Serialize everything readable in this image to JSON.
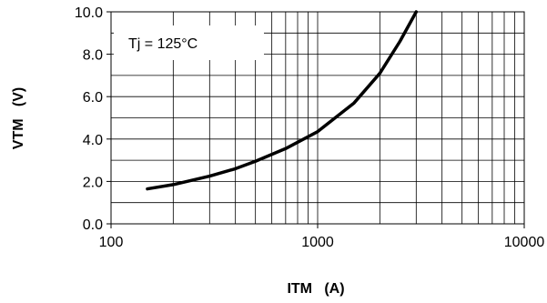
{
  "chart_data": {
    "type": "line",
    "title": "",
    "annotation": "Tj = 125°C",
    "xlabel": "ITM   (A)",
    "ylabel": "VTM   (V)",
    "x_scale": "log",
    "xlim": [
      100,
      10000
    ],
    "ylim": [
      0,
      10
    ],
    "x_ticks": [
      "100",
      "1000",
      "10000"
    ],
    "y_ticks": [
      "0.0",
      "2.0",
      "4.0",
      "6.0",
      "8.0",
      "10.0"
    ],
    "grid": true,
    "series": [
      {
        "x": [
          150,
          200,
          300,
          400,
          500,
          700,
          1000,
          1500,
          2000,
          2500,
          3000
        ],
        "y": [
          1.65,
          1.85,
          2.25,
          2.6,
          2.95,
          3.55,
          4.35,
          5.7,
          7.1,
          8.6,
          10.0
        ]
      }
    ],
    "colors": {
      "line": "#000000",
      "grid": "#000000",
      "background": "#ffffff"
    }
  }
}
